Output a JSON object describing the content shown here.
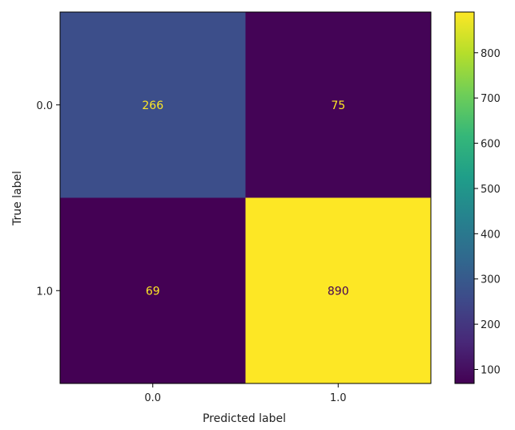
{
  "chart_data": {
    "type": "heatmap",
    "title": "",
    "xlabel": "Predicted label",
    "ylabel": "True label",
    "x_categories": [
      "0.0",
      "1.0"
    ],
    "y_categories": [
      "0.0",
      "1.0"
    ],
    "matrix": [
      [
        266,
        75
      ],
      [
        69,
        890
      ]
    ],
    "colormap": "viridis",
    "colorbar": {
      "range": [
        69,
        890
      ],
      "ticks": [
        "100",
        "200",
        "300",
        "400",
        "500",
        "600",
        "700",
        "800"
      ]
    },
    "text_color_light": "#fde725",
    "text_color_dark": "#440154"
  }
}
